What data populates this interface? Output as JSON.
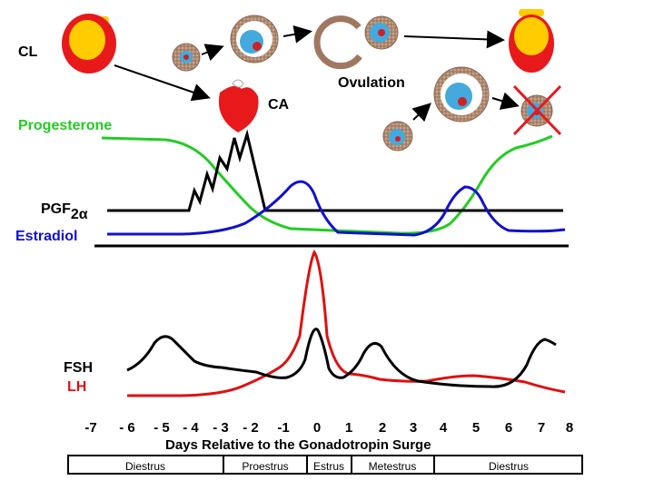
{
  "labels": {
    "cl": "CL",
    "ca": "CA",
    "ovulation": "Ovulation",
    "progesterone": "Progesterone",
    "pgf_main": "PGF",
    "pgf_sub": "2α",
    "estradiol": "Estradiol",
    "fsh": "FSH",
    "lh": "LH",
    "x_axis_title": "Days Relative to the Gonadotropin Surge"
  },
  "x_ticks": [
    "-7",
    "- 6",
    "- 5",
    "- 4",
    "- 3",
    "- 2",
    "-1",
    "0",
    "1",
    "2",
    "3",
    "4",
    "5",
    "6",
    "7",
    "8"
  ],
  "phases": [
    "Diestrus",
    "Proestrus",
    "Estrus",
    "Metestrus",
    "Diestrus"
  ],
  "colors": {
    "progesterone": "#22cc22",
    "estradiol": "#1111cc",
    "pgf": "#000000",
    "lh": "#dd1111",
    "fsh": "#000000",
    "cl_red": "#e8191b",
    "cl_yellow": "#ffcc00",
    "follicle_brown": "#a07860",
    "follicle_blue": "#44aadd"
  },
  "icons": [
    "corpus-luteum-icon",
    "corpus-albicans-icon",
    "follicle-icon",
    "ovulated-follicle-icon",
    "atretic-follicle-icon"
  ]
}
